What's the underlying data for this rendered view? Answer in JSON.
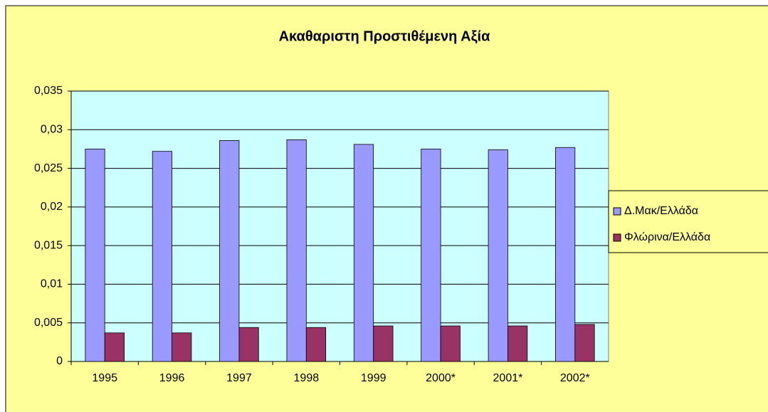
{
  "chart_data": {
    "type": "bar",
    "title": "Ακαθαριστη Προστιθέμενη Αξία",
    "categories": [
      "1995",
      "1996",
      "1997",
      "1998",
      "1999",
      "2000*",
      "2001*",
      "2002*"
    ],
    "series": [
      {
        "name": "Δ.Μακ/Ελλάδα",
        "color": "#9999FF",
        "values": [
          0.0275,
          0.0272,
          0.0286,
          0.0287,
          0.0281,
          0.0275,
          0.0274,
          0.0277
        ]
      },
      {
        "name": "Φλώρινα/Ελλάδα",
        "color": "#993366",
        "values": [
          0.0037,
          0.0037,
          0.0044,
          0.0044,
          0.0046,
          0.0046,
          0.0046,
          0.0048
        ]
      }
    ],
    "ylim": [
      0,
      0.035
    ],
    "yticks": [
      0,
      {
        "value": 0.005,
        "label": "0,005"
      },
      {
        "value": 0.01,
        "label": "0,01"
      },
      {
        "value": 0.015,
        "label": "0,015"
      },
      {
        "value": 0.02,
        "label": "0,02"
      },
      {
        "value": 0.025,
        "label": "0,025"
      },
      {
        "value": 0.03,
        "label": "0,03"
      },
      {
        "value": 0.035,
        "label": "0,035"
      }
    ],
    "grid": true,
    "legend": "right"
  }
}
